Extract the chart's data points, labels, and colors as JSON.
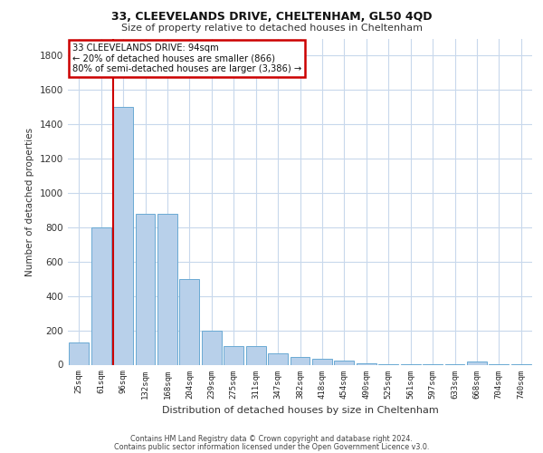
{
  "title1": "33, CLEEVELANDS DRIVE, CHELTENHAM, GL50 4QD",
  "title2": "Size of property relative to detached houses in Cheltenham",
  "xlabel": "Distribution of detached houses by size in Cheltenham",
  "ylabel": "Number of detached properties",
  "categories": [
    "25sqm",
    "61sqm",
    "96sqm",
    "132sqm",
    "168sqm",
    "204sqm",
    "239sqm",
    "275sqm",
    "311sqm",
    "347sqm",
    "382sqm",
    "418sqm",
    "454sqm",
    "490sqm",
    "525sqm",
    "561sqm",
    "597sqm",
    "633sqm",
    "668sqm",
    "704sqm",
    "740sqm"
  ],
  "values": [
    130,
    800,
    1500,
    880,
    880,
    500,
    200,
    110,
    110,
    65,
    45,
    35,
    25,
    10,
    5,
    5,
    5,
    5,
    20,
    5,
    5
  ],
  "bar_color": "#b8d0ea",
  "bar_edge_color": "#6aaad4",
  "background_color": "#ffffff",
  "grid_color": "#c8d8ec",
  "red_line_index": 2,
  "annotation_title": "33 CLEEVELANDS DRIVE: 94sqm",
  "annotation_line1": "← 20% of detached houses are smaller (866)",
  "annotation_line2": "80% of semi-detached houses are larger (3,386) →",
  "annotation_box_color": "#ffffff",
  "annotation_box_edge": "#cc0000",
  "footer1": "Contains HM Land Registry data © Crown copyright and database right 2024.",
  "footer2": "Contains public sector information licensed under the Open Government Licence v3.0.",
  "ylim": [
    0,
    1900
  ],
  "yticks": [
    0,
    200,
    400,
    600,
    800,
    1000,
    1200,
    1400,
    1600,
    1800
  ]
}
